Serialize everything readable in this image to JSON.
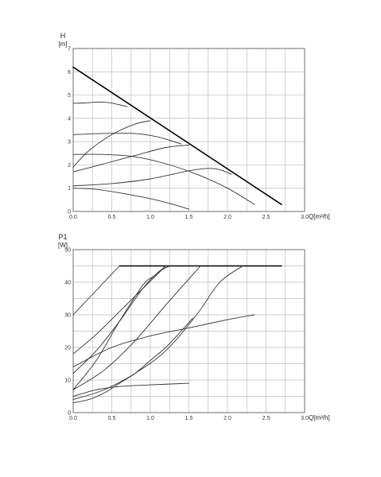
{
  "chart_data": [
    {
      "type": "line",
      "id": "head",
      "title": "",
      "ylabel": "H",
      "yunit": "[m]",
      "xlabel": "Q[m³/h]",
      "xlim": [
        0,
        3.0
      ],
      "ylim": [
        0,
        7
      ],
      "xtick_labels": [
        "0.0",
        "0.5",
        "1.0",
        "1.5",
        "2.0",
        "2.5",
        "3.0"
      ],
      "ytick_labels": [
        "0",
        "1",
        "2",
        "3",
        "4",
        "5",
        "6",
        "7"
      ],
      "grid": true,
      "series": [
        {
          "x": [
            0,
            2.7
          ],
          "y": [
            6.2,
            0.3
          ],
          "bold": true
        },
        {
          "x": [
            0,
            0.15,
            0.3,
            0.45,
            0.55,
            0.7
          ],
          "y": [
            4.65,
            4.66,
            4.7,
            4.68,
            4.62,
            4.5
          ]
        },
        {
          "x": [
            0,
            0.2,
            0.5,
            0.8,
            1.0
          ],
          "y": [
            1.9,
            2.6,
            3.3,
            3.75,
            3.9
          ]
        },
        {
          "x": [
            0,
            0.4,
            0.8,
            1.1,
            1.4
          ],
          "y": [
            3.3,
            3.35,
            3.35,
            3.2,
            2.9
          ]
        },
        {
          "x": [
            0,
            0.4,
            0.8,
            1.2,
            1.5
          ],
          "y": [
            1.7,
            2.05,
            2.4,
            2.75,
            2.85
          ]
        },
        {
          "x": [
            0,
            0.4,
            0.8,
            1.2,
            1.6,
            2.0,
            2.35
          ],
          "y": [
            2.45,
            2.45,
            2.35,
            2.05,
            1.6,
            1.0,
            0.3
          ]
        },
        {
          "x": [
            0,
            0.5,
            1.0,
            1.5,
            1.75,
            1.9,
            2.05
          ],
          "y": [
            1.1,
            1.2,
            1.4,
            1.75,
            1.85,
            1.8,
            1.6
          ]
        },
        {
          "x": [
            0,
            0.3,
            0.6,
            1.0,
            1.3,
            1.5
          ],
          "y": [
            1.0,
            0.95,
            0.8,
            0.55,
            0.3,
            0.1
          ]
        }
      ]
    },
    {
      "type": "line",
      "id": "power",
      "title": "",
      "ylabel": "P1",
      "yunit": "[W]",
      "xlabel": "Q[m³/h]",
      "xlim": [
        0,
        3.0
      ],
      "ylim": [
        0,
        50
      ],
      "xtick_labels": [
        "0.0",
        "0.5",
        "1.0",
        "1.5",
        "2.0",
        "2.5",
        "3.0"
      ],
      "ytick_labels": [
        "0",
        "10",
        "20",
        "30",
        "40",
        "50"
      ],
      "grid": true,
      "series": [
        {
          "x": [
            0.6,
            2.7
          ],
          "y": [
            45,
            45
          ],
          "bold": true
        },
        {
          "x": [
            0,
            0.2,
            0.4,
            0.6
          ],
          "y": [
            30,
            35,
            40,
            45
          ]
        },
        {
          "x": [
            0,
            0.3,
            0.6,
            0.9,
            1.2
          ],
          "y": [
            18,
            24,
            31,
            38,
            45
          ]
        },
        {
          "x": [
            0,
            0.3,
            0.6,
            0.9,
            1.1,
            1.25
          ],
          "y": [
            12,
            19,
            28,
            38,
            43,
            45
          ]
        },
        {
          "x": [
            0,
            0.3,
            0.6,
            0.9,
            1.05,
            1.2
          ],
          "y": [
            7,
            16,
            28,
            39,
            42,
            45
          ]
        },
        {
          "x": [
            0,
            0.4,
            0.8,
            1.2,
            1.5,
            1.65
          ],
          "y": [
            7,
            13,
            22,
            33,
            41,
            45
          ]
        },
        {
          "x": [
            0,
            0.4,
            0.8,
            1.2,
            1.6,
            1.9,
            2.2
          ],
          "y": [
            4,
            7,
            12,
            19,
            30,
            40,
            45
          ]
        },
        {
          "x": [
            0,
            0.5,
            1.0,
            1.5,
            2.0,
            2.35
          ],
          "y": [
            14,
            20,
            23.5,
            26,
            28.5,
            30
          ]
        },
        {
          "x": [
            0,
            0.3,
            0.6,
            1.0,
            1.5
          ],
          "y": [
            5,
            7,
            8,
            8.5,
            9
          ]
        },
        {
          "x": [
            0,
            0.2,
            0.4,
            0.6,
            0.8,
            1.0,
            1.2,
            1.4,
            1.55
          ],
          "y": [
            3,
            4,
            6,
            9,
            12,
            16,
            20,
            25,
            29
          ]
        }
      ]
    }
  ]
}
